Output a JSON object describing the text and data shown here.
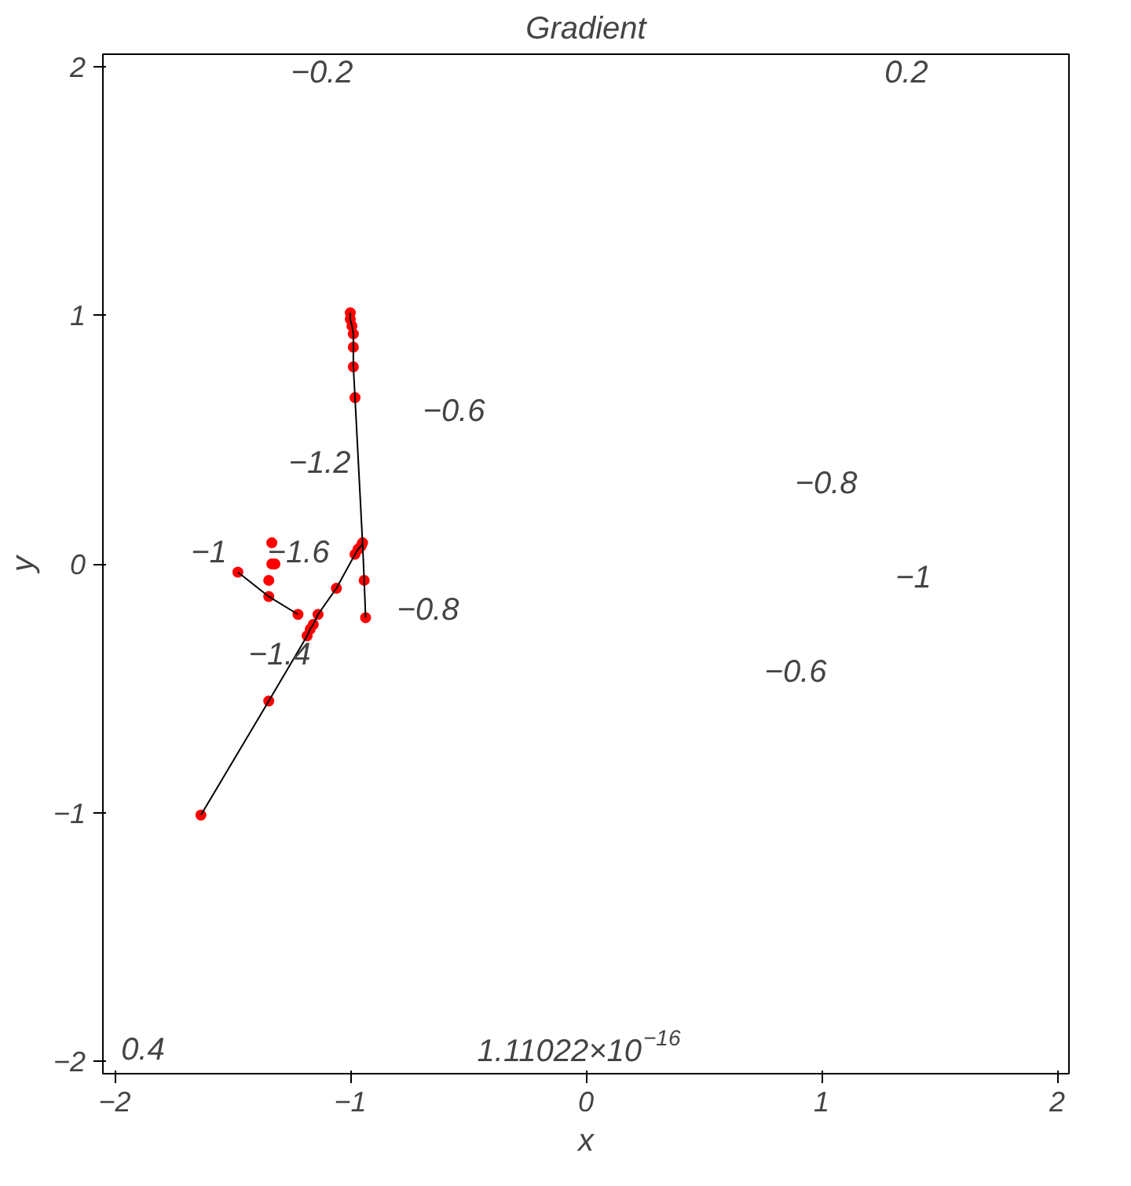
{
  "chart_data": {
    "type": "scatter",
    "title": "Gradient",
    "xlabel": "x",
    "ylabel": "y",
    "xlim": [
      -2.05,
      2.05
    ],
    "ylim": [
      -2.05,
      2.05
    ],
    "xticks": [
      -2,
      -1,
      0,
      1,
      2
    ],
    "yticks": [
      -2,
      -1,
      0,
      1,
      2
    ],
    "grid": false,
    "series": [
      {
        "type": "line",
        "color": "#000000",
        "x": [
          -1.0,
          -1.0,
          -0.993,
          -0.987,
          -0.987,
          -0.987,
          -0.98,
          -0.948,
          -0.941,
          -0.935
        ],
        "values": [
          1.01,
          0.984,
          0.957,
          0.925,
          0.872,
          0.793,
          0.669,
          0.085,
          -0.066,
          -0.216
        ]
      },
      {
        "type": "line",
        "color": "#000000",
        "x": [
          -1.634,
          -1.346,
          -1.183,
          -1.17,
          -1.157,
          -1.137,
          -1.059,
          -0.98,
          -0.967,
          -0.954,
          -0.948
        ],
        "values": [
          -1.01,
          -0.551,
          -0.289,
          -0.262,
          -0.243,
          -0.203,
          -0.098,
          0.039,
          0.059,
          0.072,
          0.085
        ]
      },
      {
        "type": "line",
        "color": "#000000",
        "x": [
          -1.477,
          -1.346,
          -1.222
        ],
        "values": [
          -0.033,
          -0.131,
          -0.203
        ]
      },
      {
        "marker": "circle",
        "color": "#ff0000",
        "x": [
          -1.0,
          -1.0,
          -0.993,
          -0.987,
          -0.987,
          -0.987,
          -0.98,
          -0.948,
          -0.954,
          -0.967,
          -0.98,
          -0.941,
          -0.935,
          -1.059,
          -1.137,
          -1.157,
          -1.17,
          -1.183,
          -1.222,
          -1.346,
          -1.634,
          -1.477,
          -1.346,
          -1.346,
          -1.333,
          -1.32,
          -1.333
        ],
        "values": [
          1.01,
          0.984,
          0.957,
          0.925,
          0.872,
          0.793,
          0.669,
          0.085,
          0.072,
          0.059,
          0.039,
          -0.066,
          -0.216,
          -0.098,
          -0.203,
          -0.243,
          -0.262,
          -0.289,
          -0.203,
          -0.551,
          -1.01,
          -0.033,
          -0.131,
          -0.066,
          0.0,
          0.0,
          0.085
        ]
      }
    ],
    "annotations": [
      "−0.2",
      "0.2",
      "−0.6",
      "−1.2",
      "−1",
      "−1.6",
      "−1.4",
      "−0.8",
      "−0.8",
      "−1",
      "−0.6",
      "0.4",
      "1.11022×10$^{−16}$"
    ]
  }
}
